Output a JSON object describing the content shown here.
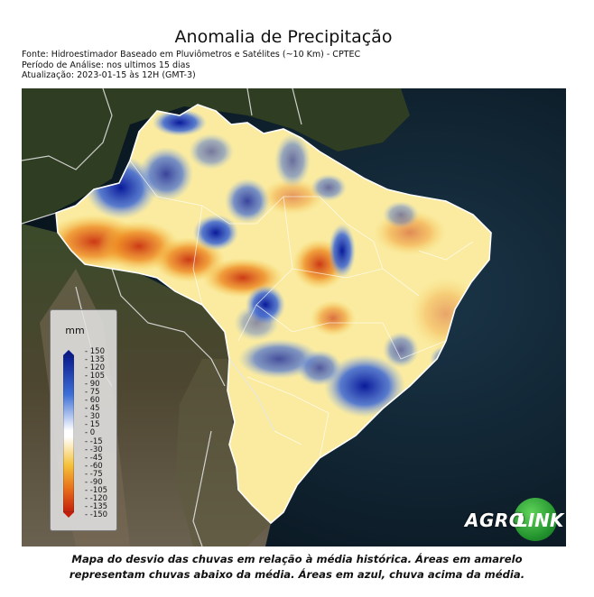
{
  "header": {
    "title": "Anomalia de Precipitação",
    "source": "Fonte: Hidroestimador Baseado em Pluviômetros e Satélites (~10 Km) - CPTEC",
    "period": "Período de Análise: nos ultimos 15 dias",
    "updated": "Atualização: 2023-01-15 às 12H (GMT-3)"
  },
  "legend": {
    "unit": "mm",
    "ticks": [
      "150",
      "135",
      "120",
      "105",
      "90",
      "75",
      "60",
      "45",
      "30",
      "15",
      "0",
      "-15",
      "-30",
      "-45",
      "-60",
      "-75",
      "-90",
      "-105",
      "-120",
      "-135",
      "-150"
    ],
    "colors": {
      "wet_max": "#0a1a8c",
      "wet_mid": "#3e6fd6",
      "neutral": "#ffffff",
      "dry_mid": "#f5c23a",
      "dry_max": "#c41e0b"
    }
  },
  "logo": {
    "part1": "AGRO",
    "part2": "LINK"
  },
  "caption": {
    "line1": "Mapa do desvio das chuvas em relação à média histórica. Áreas em amarelo",
    "line2": "representam chuvas abaixo da média. Áreas em azul, chuva acima da média."
  }
}
